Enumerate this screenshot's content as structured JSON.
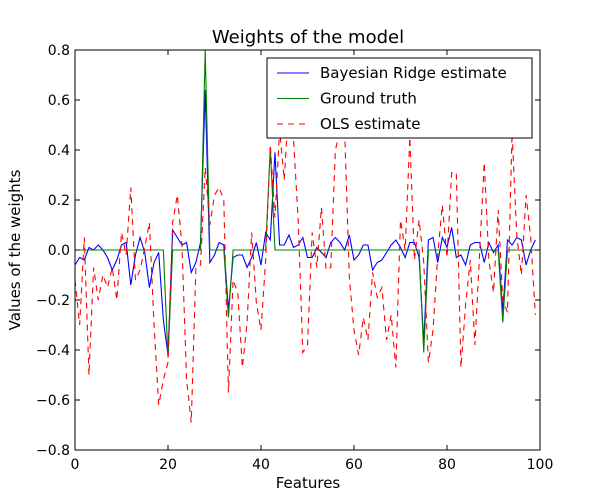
{
  "chart_data": {
    "type": "line",
    "title": "Weights of the model",
    "xlabel": "Features",
    "ylabel": "Values of the weights",
    "xlim": [
      0,
      100
    ],
    "ylim": [
      -0.8,
      0.8
    ],
    "xticks": [
      0,
      20,
      40,
      60,
      80,
      100
    ],
    "yticks": [
      -0.8,
      -0.6,
      -0.4,
      -0.2,
      0.0,
      0.2,
      0.4,
      0.6,
      0.8
    ],
    "xtick_labels": [
      "0",
      "20",
      "40",
      "60",
      "80",
      "100"
    ],
    "ytick_labels": [
      "−0.8",
      "−0.6",
      "−0.4",
      "−0.2",
      "0.0",
      "0.2",
      "0.4",
      "0.6",
      "0.8"
    ],
    "grid": false,
    "legend_position": "top-right",
    "series": [
      {
        "name": "Bayesian Ridge estimate",
        "color": "#0000ff",
        "style": "solid",
        "x": [
          0,
          1,
          2,
          3,
          4,
          5,
          6,
          7,
          8,
          9,
          10,
          11,
          12,
          13,
          14,
          15,
          16,
          17,
          18,
          19,
          20,
          21,
          22,
          23,
          24,
          25,
          26,
          27,
          28,
          29,
          30,
          31,
          32,
          33,
          34,
          35,
          36,
          37,
          38,
          39,
          40,
          41,
          42,
          43,
          44,
          45,
          46,
          47,
          48,
          49,
          50,
          51,
          52,
          53,
          54,
          55,
          56,
          57,
          58,
          59,
          60,
          61,
          62,
          63,
          64,
          65,
          66,
          67,
          68,
          69,
          70,
          71,
          72,
          73,
          74,
          75,
          76,
          77,
          78,
          79,
          80,
          81,
          82,
          83,
          84,
          85,
          86,
          87,
          88,
          89,
          90,
          91,
          92,
          93,
          94,
          95,
          96,
          97,
          98,
          99
        ],
        "y": [
          -0.06,
          -0.03,
          -0.04,
          0.01,
          0.0,
          0.02,
          0.0,
          -0.03,
          -0.08,
          -0.04,
          0.02,
          0.03,
          -0.14,
          -0.02,
          0.05,
          -0.01,
          -0.15,
          -0.05,
          -0.01,
          -0.28,
          -0.42,
          0.08,
          0.05,
          0.02,
          0.03,
          -0.09,
          -0.05,
          0.03,
          0.64,
          -0.05,
          -0.02,
          0.03,
          0.02,
          -0.24,
          -0.03,
          -0.02,
          -0.02,
          -0.07,
          -0.03,
          0.03,
          -0.06,
          0.07,
          0.04,
          0.39,
          0.02,
          0.02,
          0.06,
          0.01,
          0.02,
          0.05,
          -0.03,
          -0.03,
          0.01,
          -0.01,
          -0.03,
          0.03,
          0.05,
          0.03,
          0.0,
          0.06,
          -0.04,
          -0.02,
          0.02,
          0.02,
          -0.08,
          -0.05,
          -0.04,
          -0.01,
          0.02,
          0.04,
          0.01,
          -0.03,
          0.03,
          0.03,
          -0.03,
          -0.37,
          0.04,
          0.05,
          -0.05,
          0.05,
          0.01,
          0.09,
          -0.03,
          -0.02,
          -0.06,
          0.02,
          0.03,
          0.03,
          -0.05,
          0.03,
          -0.01,
          0.02,
          -0.25,
          0.04,
          0.02,
          0.05,
          0.04,
          -0.06,
          0.0,
          0.04
        ]
      },
      {
        "name": "Ground truth",
        "color": "#008000",
        "style": "solid",
        "x": [
          0,
          19,
          20,
          21,
          27,
          28,
          29,
          32,
          33,
          34,
          41,
          42,
          43,
          74,
          75,
          76,
          91,
          92,
          93,
          99
        ],
        "y": [
          0,
          0,
          -0.43,
          0,
          0,
          0.8,
          0,
          0,
          -0.27,
          0,
          0,
          0.41,
          0,
          0,
          -0.41,
          0,
          0,
          -0.29,
          0,
          0
        ]
      },
      {
        "name": "OLS estimate",
        "color": "#ff0000",
        "style": "dashed",
        "x": [
          0,
          1,
          2,
          3,
          4,
          5,
          6,
          7,
          8,
          9,
          10,
          11,
          12,
          13,
          14,
          15,
          16,
          17,
          18,
          19,
          20,
          21,
          22,
          23,
          24,
          25,
          26,
          27,
          28,
          29,
          30,
          31,
          32,
          33,
          34,
          35,
          36,
          37,
          38,
          39,
          40,
          41,
          42,
          43,
          44,
          45,
          46,
          47,
          48,
          49,
          50,
          51,
          52,
          53,
          54,
          55,
          56,
          57,
          58,
          59,
          60,
          61,
          62,
          63,
          64,
          65,
          66,
          67,
          68,
          69,
          70,
          71,
          72,
          73,
          74,
          75,
          76,
          77,
          78,
          79,
          80,
          81,
          82,
          83,
          84,
          85,
          86,
          87,
          88,
          89,
          90,
          91,
          92,
          93,
          94,
          95,
          96,
          97,
          98,
          99
        ],
        "y": [
          -0.12,
          -0.3,
          0.05,
          -0.5,
          -0.07,
          -0.2,
          -0.1,
          -0.15,
          -0.07,
          -0.2,
          0.07,
          -0.02,
          0.25,
          -0.12,
          -0.08,
          0.01,
          0.11,
          -0.3,
          -0.62,
          -0.52,
          -0.45,
          0.11,
          0.22,
          0.02,
          -0.52,
          -0.69,
          -0.07,
          -0.06,
          0.33,
          0.1,
          0.22,
          0.25,
          0.2,
          -0.57,
          -0.12,
          -0.17,
          -0.47,
          -0.29,
          0.07,
          -0.21,
          -0.32,
          -0.04,
          0.42,
          0.13,
          0.48,
          0.28,
          0.6,
          0.44,
          0.12,
          -0.41,
          -0.38,
          0.07,
          -0.07,
          0.17,
          -0.08,
          -0.07,
          0.4,
          0.48,
          0.47,
          -0.11,
          -0.32,
          -0.42,
          -0.27,
          -0.36,
          -0.09,
          -0.19,
          -0.15,
          -0.36,
          -0.26,
          -0.47,
          0.12,
          0.0,
          0.45,
          -0.04,
          0.12,
          -0.05,
          -0.45,
          -0.32,
          -0.02,
          0.18,
          -0.03,
          0.31,
          0.31,
          -0.47,
          -0.22,
          -0.04,
          -0.38,
          -0.02,
          0.35,
          -0.04,
          -0.17,
          0.16,
          -0.2,
          -0.25,
          0.47,
          0.06,
          -0.1,
          0.22,
          0.05,
          -0.26
        ]
      }
    ]
  }
}
